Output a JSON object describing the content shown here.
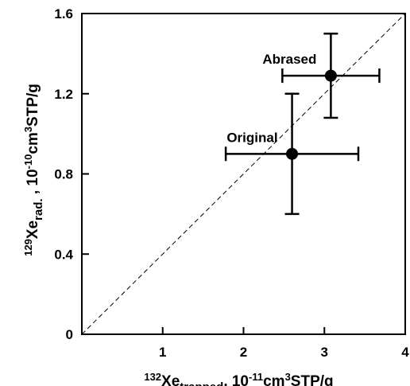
{
  "chart_data": {
    "type": "scatter",
    "x_axis": {
      "range": [
        0,
        4
      ],
      "ticks": [
        1,
        2,
        3,
        4
      ],
      "tick_labels": [
        "1",
        "2",
        "3",
        "4"
      ],
      "label": {
        "superscript": "132",
        "base": "Xe",
        "subscript": "trapped",
        "rest": ", 10",
        "exponent": "-11",
        "unit": "cm",
        "unit_exponent": "3",
        "unit_rest": "STP/g"
      }
    },
    "y_axis": {
      "range": [
        0,
        1.6
      ],
      "ticks": [
        0,
        0.4,
        0.8,
        1.2,
        1.6
      ],
      "tick_labels": [
        "0",
        "0.4",
        "0.8",
        "1.2",
        "1.6"
      ],
      "label": {
        "superscript": "129",
        "base": "Xe",
        "subscript": "rad.",
        "rest": " , 10",
        "exponent": "-10",
        "unit": "cm",
        "unit_exponent": "3",
        "unit_rest": "STP/g"
      }
    },
    "points": [
      {
        "label": "Original",
        "x": 2.6,
        "y": 0.9,
        "x_err": [
          1.78,
          3.42
        ],
        "y_err": [
          0.6,
          1.2
        ]
      },
      {
        "label": "Abrased",
        "x": 3.08,
        "y": 1.29,
        "x_err": [
          2.48,
          3.68
        ],
        "y_err": [
          1.08,
          1.5
        ]
      }
    ],
    "reference_line": {
      "style": "dashed",
      "from": [
        0,
        0
      ],
      "to": [
        4,
        1.6
      ]
    },
    "grid": false,
    "legend": false
  }
}
